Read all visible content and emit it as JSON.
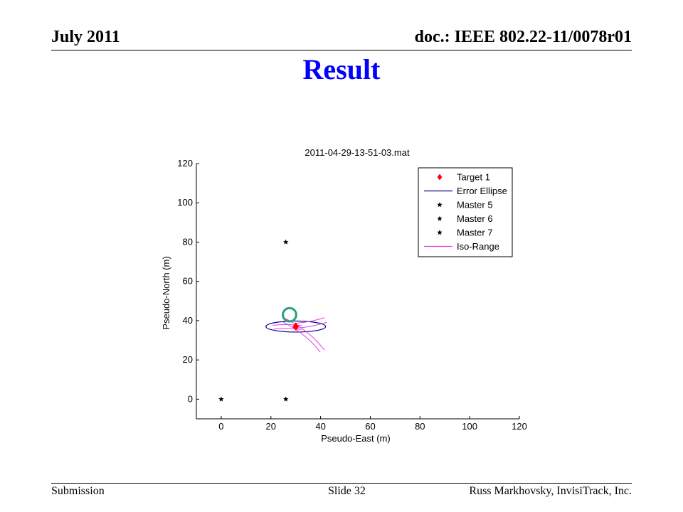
{
  "header": {
    "date": "July 2011",
    "doc_id": "doc.: IEEE 802.22-11/0078r01"
  },
  "slide": {
    "title": "Result"
  },
  "footer": {
    "left": "Submission",
    "center": "Slide 32",
    "right": "Russ Markhovsky, InvisiTrack, Inc."
  },
  "chart_data": {
    "type": "scatter",
    "title": "2011-04-29-13-51-03.mat",
    "xlabel": "Pseudo-East (m)",
    "ylabel": "Pseudo-North (m)",
    "xlim": [
      -10,
      120
    ],
    "ylim": [
      -10,
      120
    ],
    "xticks": [
      0,
      20,
      40,
      60,
      80,
      100,
      120
    ],
    "yticks": [
      0,
      20,
      40,
      60,
      80,
      100,
      120
    ],
    "grid": false,
    "legend_position": "top-right",
    "series": [
      {
        "name": "Target 1",
        "marker": "diamond",
        "color": "#ff0000",
        "points": [
          [
            30,
            37
          ]
        ]
      },
      {
        "name": "Error Ellipse",
        "marker": "line",
        "color": "#00008b",
        "ellipse": {
          "center": [
            30,
            37
          ],
          "rx": 12,
          "ry": 2.8
        }
      },
      {
        "name": "Master 5",
        "marker": "star",
        "color": "#000000",
        "points": [
          [
            0,
            0
          ]
        ]
      },
      {
        "name": "Master 6",
        "marker": "star",
        "color": "#000000",
        "points": [
          [
            26,
            0
          ]
        ]
      },
      {
        "name": "Master 7",
        "marker": "star",
        "color": "#000000",
        "points": [
          [
            26,
            80
          ]
        ]
      },
      {
        "name": "Iso-Range",
        "marker": "line",
        "color": "#e040e0",
        "arcs": [
          {
            "center": [
              0,
              0
            ],
            "r": 46.5,
            "from_deg": 31,
            "to_deg": 58
          },
          {
            "center": [
              0,
              0
            ],
            "r": 48.5,
            "from_deg": 31,
            "to_deg": 58
          },
          {
            "center": [
              26,
              0
            ],
            "r": 36,
            "from_deg": 80,
            "to_deg": 98
          },
          {
            "center": [
              26,
              0
            ],
            "r": 38,
            "from_deg": 80,
            "to_deg": 98
          },
          {
            "center": [
              26,
              80
            ],
            "r": 41.5,
            "from_deg": -85,
            "to_deg": -68
          },
          {
            "center": [
              26,
              80
            ],
            "r": 44,
            "from_deg": -85,
            "to_deg": -68
          }
        ]
      }
    ],
    "annotation_circle": {
      "center": [
        27.5,
        43
      ],
      "r": 3.4,
      "color": "#2a9d7f"
    }
  }
}
